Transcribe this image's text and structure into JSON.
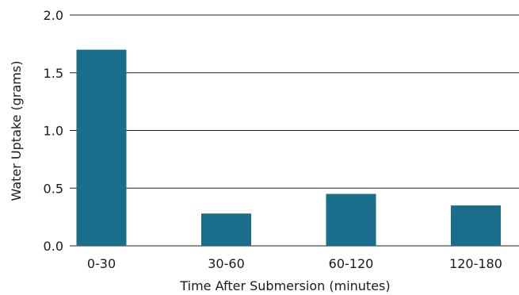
{
  "chart_data": {
    "type": "bar",
    "categories": [
      "0-30",
      "30-60",
      "60-120",
      "120-180"
    ],
    "values": [
      1.7,
      0.28,
      0.45,
      0.35
    ],
    "title": "",
    "xlabel": "Time After Submersion (minutes)",
    "ylabel": "Water Uptake (grams)",
    "ylim": [
      0,
      2.0
    ],
    "yticks": [
      "0.0",
      "0.5",
      "1.0",
      "1.5",
      "2.0"
    ],
    "grid": true,
    "bar_color": "#1a6e8c"
  }
}
